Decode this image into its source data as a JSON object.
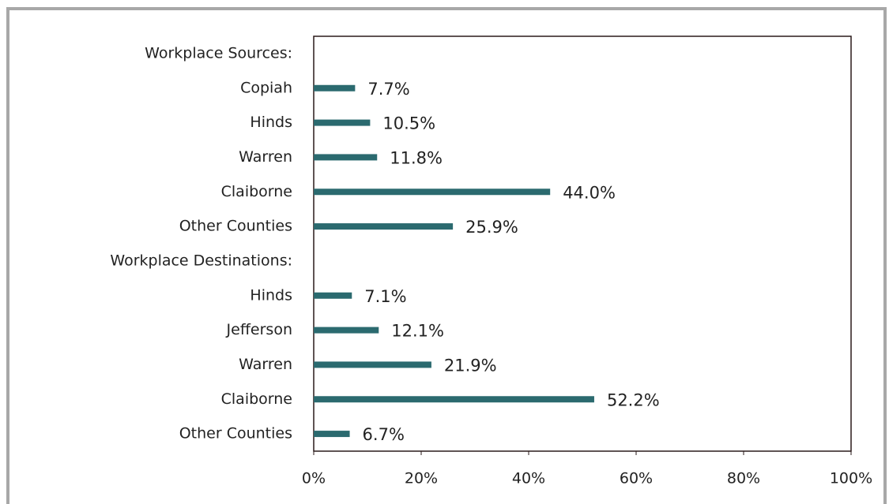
{
  "chart_data": {
    "type": "hbar",
    "categories": [
      "Workplace Sources:",
      "Copiah",
      "Hinds",
      "Warren",
      "Claiborne",
      "Other Counties",
      "Workplace Destinations:",
      "Hinds",
      "Jefferson",
      "Warren",
      "Claiborne",
      "Other Counties"
    ],
    "values": [
      null,
      7.7,
      10.5,
      11.8,
      44.0,
      25.9,
      null,
      7.1,
      12.1,
      21.9,
      52.2,
      6.7
    ],
    "value_labels": [
      null,
      "7.7%",
      "10.5%",
      "11.8%",
      "44.0%",
      "25.9%",
      null,
      "7.1%",
      "12.1%",
      "21.9%",
      "52.2%",
      "6.7%"
    ],
    "color": "#2b6a6f",
    "xlim": [
      0,
      100
    ],
    "xticks": [
      {
        "value": 0,
        "label": "0%"
      },
      {
        "value": 20,
        "label": "20%"
      },
      {
        "value": 40,
        "label": "40%"
      },
      {
        "value": 60,
        "label": "60%"
      },
      {
        "value": 80,
        "label": "80%"
      },
      {
        "value": 100,
        "label": "100%"
      }
    ],
    "grid": false
  }
}
